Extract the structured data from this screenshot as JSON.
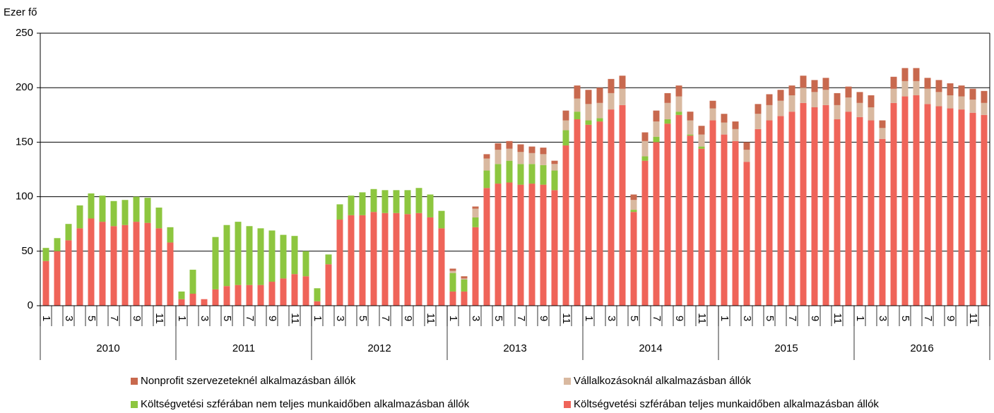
{
  "chart_data": {
    "type": "stacked_bar",
    "y_label": "Ezer fő",
    "categories": [
      "1",
      null,
      "3",
      null,
      "5",
      null,
      "7",
      null,
      "9",
      null,
      "11",
      null,
      "1",
      null,
      "3",
      null,
      "5",
      null,
      "7",
      null,
      "9",
      null,
      "11",
      null,
      "1",
      null,
      "3",
      null,
      "5",
      null,
      "7",
      null,
      "9",
      null,
      "11",
      null,
      "1",
      null,
      "3",
      null,
      "5",
      null,
      "7",
      null,
      "9",
      null,
      "11",
      null,
      "1",
      null,
      "3",
      null,
      "5",
      null,
      "7",
      null,
      "9",
      null,
      "11",
      null,
      "1",
      null,
      "3",
      null,
      "5",
      null,
      "7",
      null,
      "9",
      null,
      "11",
      null,
      "1",
      null,
      "3",
      null,
      "5",
      null,
      "7",
      null,
      "9",
      null,
      "11",
      null
    ],
    "years": [
      "2010",
      "2011",
      "2012",
      "2013",
      "2014",
      "2015",
      "2016"
    ],
    "ylim": [
      0,
      250
    ],
    "yticks": [
      0,
      50,
      100,
      150,
      200,
      250
    ],
    "grid": true,
    "series": [
      {
        "name": "Költségvetési szférában teljes munkaidőben alkalmazásban állók",
        "color": "#ef6459",
        "values": [
          41,
          50,
          60,
          71,
          80,
          77,
          73,
          74,
          77,
          76,
          71,
          58,
          6,
          11,
          6,
          15,
          18,
          19,
          19,
          19,
          22,
          25,
          29,
          27,
          4,
          38,
          79,
          83,
          83,
          86,
          85,
          85,
          84,
          85,
          81,
          71,
          13,
          13,
          72,
          108,
          112,
          113,
          111,
          112,
          111,
          106,
          147,
          171,
          166,
          169,
          180,
          184,
          86,
          133,
          150,
          167,
          175,
          156,
          144,
          170,
          157,
          151,
          132,
          162,
          170,
          174,
          178,
          186,
          182,
          184,
          171,
          178,
          173,
          170,
          153,
          186,
          192,
          193,
          185,
          183,
          181,
          180,
          177,
          175
        ]
      },
      {
        "name": "Költségvetési szférában nem teljes munkaidőben alkalmazásban állók",
        "color": "#8dc63f",
        "values": [
          12,
          12,
          15,
          21,
          23,
          24,
          23,
          23,
          23,
          23,
          19,
          14,
          7,
          22,
          0,
          48,
          56,
          58,
          54,
          52,
          47,
          40,
          35,
          23,
          12,
          9,
          14,
          18,
          21,
          21,
          21,
          21,
          22,
          23,
          21,
          16,
          17,
          11,
          9,
          16,
          18,
          20,
          19,
          18,
          18,
          18,
          14,
          7,
          4,
          3,
          0,
          0,
          2,
          4,
          5,
          4,
          3,
          1,
          2,
          0,
          0,
          0,
          0,
          0,
          0,
          0,
          0,
          0,
          0,
          0,
          0,
          0,
          0,
          0,
          0,
          0,
          0,
          0,
          0,
          0,
          0,
          0,
          0,
          0
        ]
      },
      {
        "name": "Vállalkozásoknál alkalmazásban állók",
        "color": "#d9b9a0",
        "values": [
          0,
          0,
          0,
          0,
          0,
          0,
          0,
          0,
          0,
          0,
          0,
          0,
          0,
          0,
          0,
          0,
          0,
          0,
          0,
          0,
          0,
          0,
          0,
          0,
          0,
          0,
          0,
          0,
          0,
          0,
          0,
          0,
          0,
          0,
          0,
          0,
          2,
          1,
          8,
          11,
          13,
          11,
          11,
          10,
          10,
          6,
          9,
          12,
          15,
          14,
          15,
          15,
          9,
          14,
          14,
          15,
          14,
          13,
          11,
          11,
          11,
          11,
          11,
          14,
          14,
          14,
          15,
          14,
          14,
          14,
          13,
          13,
          13,
          12,
          10,
          13,
          14,
          13,
          14,
          13,
          12,
          12,
          12,
          11
        ]
      },
      {
        "name": "Nonprofit szervezeteknél alkalmazásban állók",
        "color": "#c8694e",
        "values": [
          0,
          0,
          0,
          0,
          0,
          0,
          0,
          0,
          0,
          0,
          0,
          0,
          0,
          0,
          0,
          0,
          0,
          0,
          0,
          0,
          0,
          0,
          0,
          0,
          0,
          0,
          0,
          0,
          0,
          0,
          0,
          0,
          0,
          0,
          0,
          0,
          2,
          2,
          2,
          4,
          6,
          7,
          7,
          6,
          6,
          3,
          9,
          12,
          13,
          14,
          13,
          12,
          5,
          8,
          10,
          9,
          10,
          8,
          8,
          7,
          8,
          7,
          7,
          9,
          10,
          10,
          9,
          11,
          11,
          11,
          11,
          10,
          10,
          11,
          7,
          11,
          12,
          12,
          10,
          11,
          11,
          10,
          10,
          11
        ]
      }
    ]
  }
}
